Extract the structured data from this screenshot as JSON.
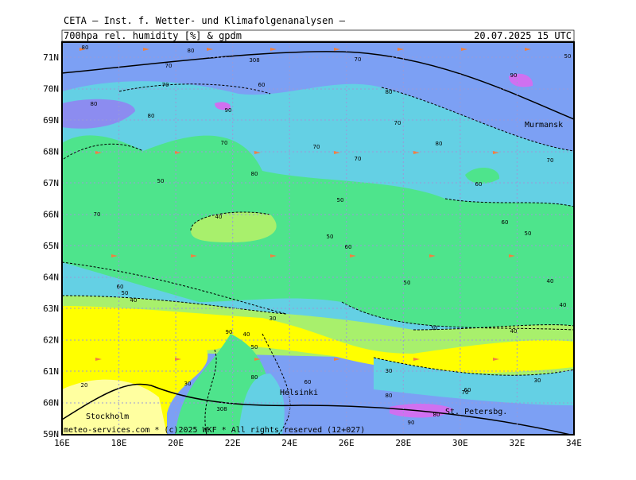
{
  "header": {
    "source": "CETA – Inst. f. Wetter- und Klimafolgenanalysen –",
    "product": "700hpa rel. humidity [%] & gpdm",
    "valid": "20.07.2025 15 UTC"
  },
  "lat_labels": [
    "71N",
    "70N",
    "69N",
    "68N",
    "67N",
    "66N",
    "65N",
    "64N",
    "63N",
    "62N",
    "61N",
    "60N",
    "59N"
  ],
  "lon_labels": [
    "16E",
    "18E",
    "20E",
    "22E",
    "24E",
    "26E",
    "28E",
    "30E",
    "32E",
    "34E"
  ],
  "places": [
    "Murmansk",
    "Helsinki",
    "St. Petersbg.",
    "Stockholm"
  ],
  "footer": "meteo-services.com * (c)2025 WKF * All rights reserved (12+027)",
  "contour_labels": [
    "80",
    "80",
    "70",
    "308",
    "70",
    "50",
    "90",
    "80",
    "80",
    "70",
    "60",
    "80",
    "70",
    "70",
    "70",
    "70",
    "80",
    "90",
    "70",
    "80",
    "60",
    "50",
    "50",
    "40",
    "50",
    "70",
    "60",
    "60",
    "50",
    "50",
    "40",
    "40",
    "60",
    "50",
    "40",
    "30",
    "40",
    "30",
    "30",
    "20",
    "30",
    "80",
    "60",
    "50",
    "90",
    "308",
    "80",
    "90",
    "80",
    "70",
    "30",
    "60",
    "40"
  ]
}
